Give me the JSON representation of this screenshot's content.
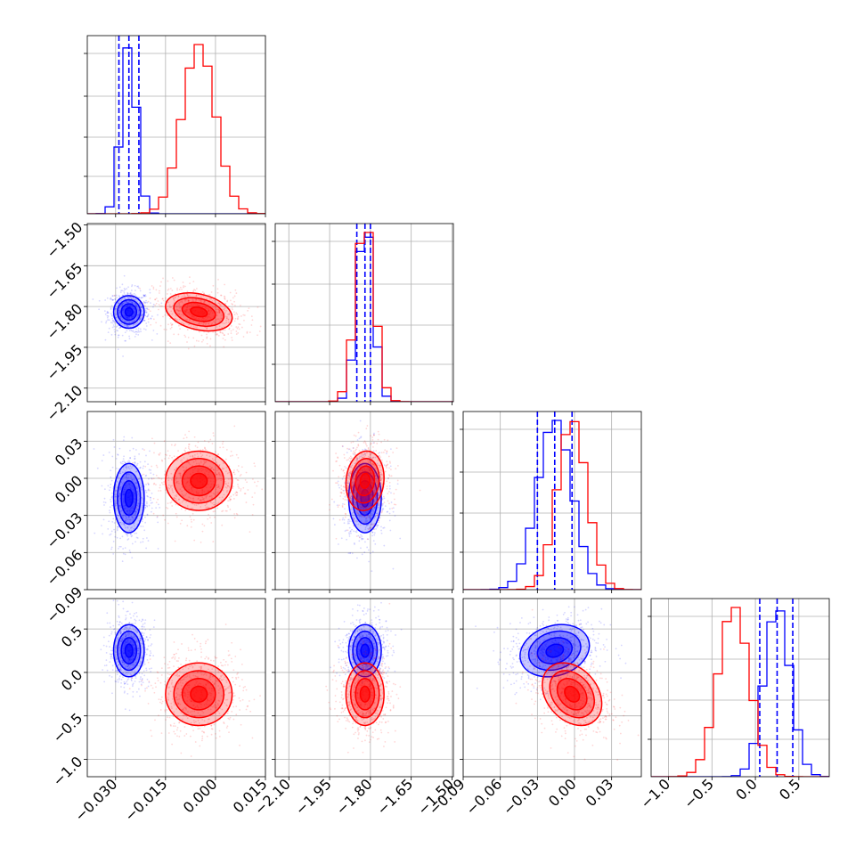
{
  "chart_data": {
    "type": "corner",
    "parameters": 4,
    "grid": true,
    "colors": {
      "series_a": "#0000ff",
      "series_b": "#ff0000"
    },
    "series": [
      {
        "color": "#0000ff",
        "means": [
          -0.026,
          -1.82,
          -0.016,
          0.25
        ],
        "sds": [
          0.0023,
          0.03,
          0.014,
          0.15
        ],
        "correlations": {
          "1_0": 0.0,
          "2_0": 0.0,
          "2_1": 0.0,
          "3_0": 0.0,
          "3_1": 0.0,
          "3_2": 0.2
        },
        "quantiles": [
          [
            -0.029,
            -0.026,
            -0.023
          ],
          [
            -1.85,
            -1.82,
            -1.8
          ],
          [
            -0.03,
            -0.016,
            -0.002
          ],
          [
            0.05,
            0.25,
            0.43
          ]
        ]
      },
      {
        "color": "#ff0000",
        "means": [
          -0.005,
          -1.82,
          -0.002,
          -0.25
        ],
        "sds": [
          0.005,
          0.035,
          0.012,
          0.18
        ],
        "correlations": {
          "1_0": -0.3,
          "2_0": 0.0,
          "2_1": 0.1,
          "3_0": 0.0,
          "3_1": 0.0,
          "3_2": -0.3
        },
        "quantiles": null
      }
    ],
    "axes": [
      {
        "range": [
          -0.0385,
          0.015
        ],
        "ticks": [
          -0.03,
          -0.015,
          0.0,
          0.015
        ],
        "tick_labels": [
          "−0.030",
          "−0.015",
          "0.000",
          "0.015"
        ]
      },
      {
        "range": [
          -2.15,
          -1.495
        ],
        "ticks": [
          -2.1,
          -1.95,
          -1.8,
          -1.65,
          -1.5
        ],
        "tick_labels": [
          "−2.10",
          "−1.95",
          "−1.80",
          "−1.65",
          "−1.50"
        ]
      },
      {
        "range": [
          -0.09,
          0.054
        ],
        "ticks": [
          -0.09,
          -0.06,
          -0.03,
          0.0,
          0.03
        ],
        "tick_labels": [
          "−0.09",
          "−0.06",
          "−0.03",
          "0.00",
          "0.03"
        ]
      },
      {
        "range": [
          -1.2,
          0.85
        ],
        "ticks": [
          -1.0,
          -0.5,
          0.0,
          0.5
        ],
        "tick_labels": [
          "−1.0",
          "−0.5",
          "0.0",
          "0.5"
        ]
      }
    ]
  }
}
